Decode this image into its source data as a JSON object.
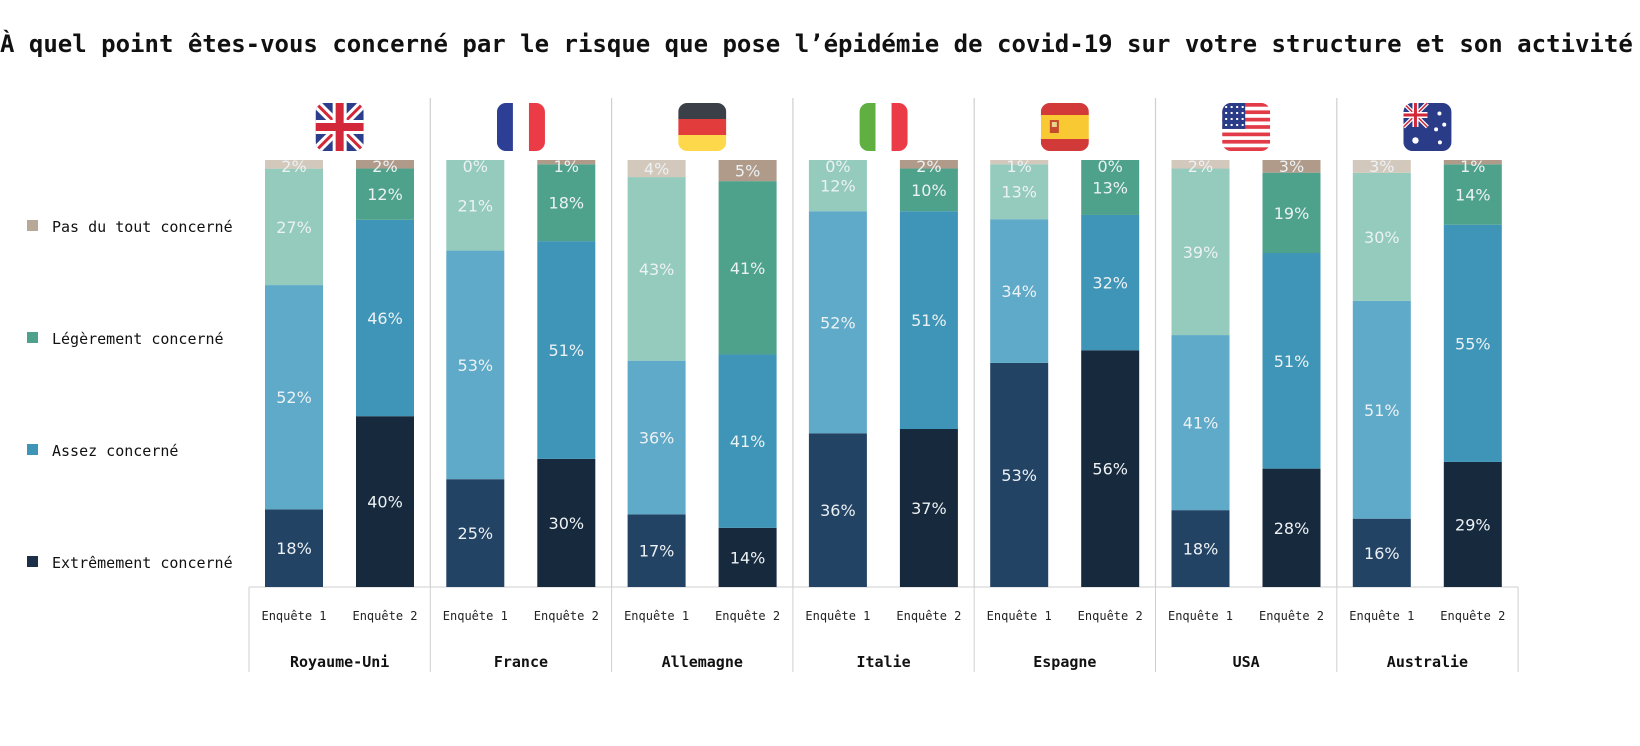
{
  "chart_data": {
    "type": "bar",
    "stacked": true,
    "normalized": true,
    "title": "À quel point êtes-vous concerné par le risque que pose l’épidémie de covid-19 sur votre structure et son activité ?",
    "ylim": [
      0,
      100
    ],
    "legend_position": "left",
    "grid": false,
    "legend": [
      {
        "label": "Pas du tout concerné",
        "color": "#b8a898"
      },
      {
        "label": "Légèrement concerné",
        "color": "#4ea28b"
      },
      {
        "label": "Assez concerné",
        "color": "#3e95b7"
      },
      {
        "label": "Extrêmement concerné",
        "color": "#1b3048"
      }
    ],
    "segment_order_bottom_to_top": [
      "Extrêmement concerné",
      "Assez concerné",
      "Légèrement concerné",
      "Pas du tout concerné"
    ],
    "groups": [
      {
        "country": "Royaume-Uni",
        "flag": "uk-flag-icon",
        "bars": [
          {
            "label": "Enquête 1",
            "values": [
              18,
              52,
              27,
              2
            ]
          },
          {
            "label": "Enquête 2",
            "values": [
              40,
              46,
              12,
              2
            ]
          }
        ]
      },
      {
        "country": "France",
        "flag": "france-flag-icon",
        "bars": [
          {
            "label": "Enquête 1",
            "values": [
              25,
              53,
              21,
              0
            ]
          },
          {
            "label": "Enquête 2",
            "values": [
              30,
              51,
              18,
              1
            ]
          }
        ]
      },
      {
        "country": "Allemagne",
        "flag": "germany-flag-icon",
        "bars": [
          {
            "label": "Enquête 1",
            "values": [
              17,
              36,
              43,
              4
            ]
          },
          {
            "label": "Enquête 2",
            "values": [
              14,
              41,
              41,
              5
            ]
          }
        ]
      },
      {
        "country": "Italie",
        "flag": "italy-flag-icon",
        "bars": [
          {
            "label": "Enquête 1",
            "values": [
              36,
              52,
              12,
              0
            ]
          },
          {
            "label": "Enquête 2",
            "values": [
              37,
              51,
              10,
              2
            ]
          }
        ]
      },
      {
        "country": "Espagne",
        "flag": "spain-flag-icon",
        "bars": [
          {
            "label": "Enquête 1",
            "values": [
              53,
              34,
              13,
              1
            ]
          },
          {
            "label": "Enquête 2",
            "values": [
              56,
              32,
              13,
              0
            ]
          }
        ]
      },
      {
        "country": "USA",
        "flag": "usa-flag-icon",
        "bars": [
          {
            "label": "Enquête 1",
            "values": [
              18,
              41,
              39,
              2
            ]
          },
          {
            "label": "Enquête 2",
            "values": [
              28,
              51,
              19,
              3
            ]
          }
        ]
      },
      {
        "country": "Australie",
        "flag": "australia-flag-icon",
        "bars": [
          {
            "label": "Enquête 1",
            "values": [
              16,
              51,
              30,
              3
            ]
          },
          {
            "label": "Enquête 2",
            "values": [
              29,
              55,
              14,
              1
            ]
          }
        ]
      }
    ],
    "colors": {
      "survey1": [
        "#234365",
        "#5eaac8",
        "#94cbbd",
        "#d3c8bc"
      ],
      "survey2": [
        "#17293d",
        "#3e95b7",
        "#4ea28b",
        "#b09a89"
      ],
      "label_color": "#ecf1f4",
      "separator": "#cfcfcf"
    }
  }
}
